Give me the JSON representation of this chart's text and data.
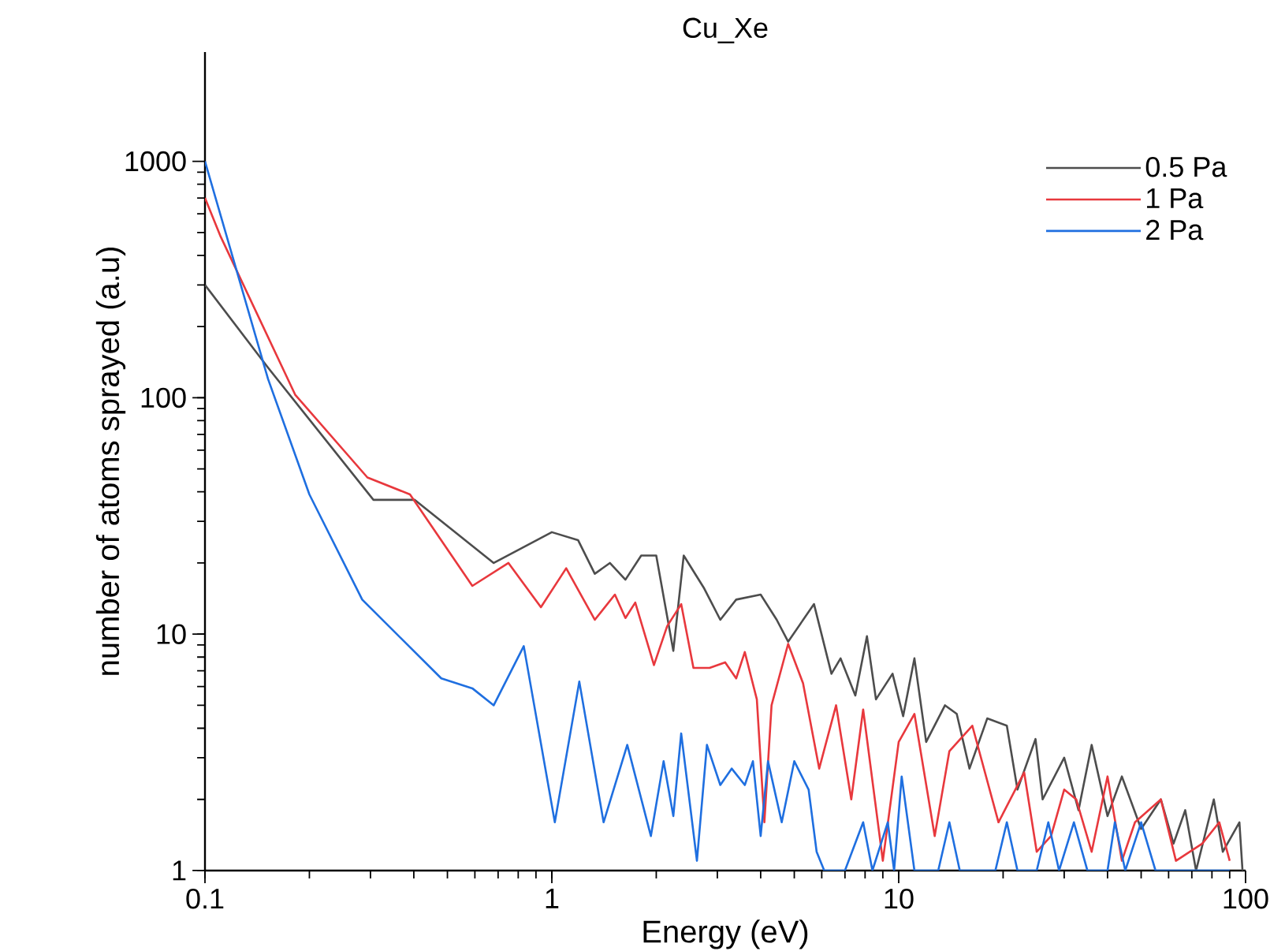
{
  "chart_data": {
    "type": "line",
    "title": "Cu_Xe",
    "xlabel": "Energy  (eV)",
    "ylabel": "number of atoms sprayed (a.u)",
    "log": "xy",
    "xlim": [
      0.1,
      100
    ],
    "ylim": [
      1,
      2900
    ],
    "xticks": [
      {
        "value": 0.1,
        "label": "0.1"
      },
      1,
      10,
      100
    ],
    "yticks": [
      1,
      10,
      100,
      1000
    ],
    "grid": false,
    "legend": "top right",
    "series": [
      {
        "name": "0.5 Pa",
        "color": "#4d4d4d",
        "x": [
          0.1,
          0.152,
          0.306,
          0.402,
          0.68,
          1.0,
          1.19,
          1.33,
          1.47,
          1.63,
          1.81,
          2.0,
          2.24,
          2.4,
          2.75,
          3.06,
          3.4,
          4.0,
          4.45,
          4.8,
          5.7,
          6.4,
          6.8,
          7.5,
          8.1,
          8.6,
          9.6,
          10.3,
          11.1,
          12,
          13.6,
          14.7,
          16,
          18,
          20.5,
          22,
          24.8,
          26,
          30,
          33,
          36,
          40,
          44,
          50,
          57,
          62,
          67,
          72,
          81,
          86,
          96,
          98
        ],
        "values": [
          300,
          134,
          37,
          37,
          20,
          27,
          25,
          18,
          20,
          17,
          21.5,
          21.5,
          8.5,
          21.5,
          15.6,
          11.5,
          14,
          14.7,
          11.5,
          9.3,
          13.4,
          6.8,
          7.9,
          5.5,
          9.8,
          5.3,
          6.8,
          4.5,
          7.9,
          3.5,
          5.0,
          4.6,
          2.7,
          4.4,
          4.1,
          2.2,
          3.6,
          2.0,
          3.0,
          1.8,
          3.4,
          1.7,
          2.5,
          1.5,
          2.0,
          1.3,
          1.8,
          1.0,
          2.0,
          1.2,
          1.6,
          1.0
        ]
      },
      {
        "name": "1 Pa",
        "color": "#e8383d",
        "x": [
          0.1,
          0.111,
          0.182,
          0.294,
          0.39,
          0.59,
          0.75,
          0.93,
          1.1,
          1.33,
          1.52,
          1.63,
          1.74,
          1.97,
          2.15,
          2.36,
          2.56,
          2.85,
          3.16,
          3.4,
          3.6,
          3.9,
          4.1,
          4.3,
          4.8,
          5.3,
          5.9,
          6.6,
          7.3,
          7.9,
          9.0,
          10,
          11.1,
          12.7,
          14,
          16.3,
          19.4,
          23,
          25,
          27.5,
          30,
          32.5,
          36,
          40,
          44,
          48,
          57,
          63,
          75,
          84,
          90
        ],
        "values": [
          700,
          480,
          103,
          46,
          39,
          16,
          20,
          13,
          19,
          11.5,
          14.7,
          11.7,
          13.6,
          7.4,
          10.8,
          13.4,
          7.2,
          7.2,
          7.6,
          6.5,
          8.4,
          5.3,
          1.6,
          5.0,
          9.1,
          6.2,
          2.7,
          5.0,
          2.0,
          4.8,
          1.1,
          3.5,
          4.6,
          1.4,
          3.2,
          4.1,
          1.6,
          2.6,
          1.2,
          1.4,
          2.2,
          2.0,
          1.2,
          2.5,
          1.1,
          1.6,
          2.0,
          1.1,
          1.3,
          1.6,
          1.1
        ]
      },
      {
        "name": "2 Pa",
        "color": "#1f6fe0",
        "x": [
          0.1,
          0.152,
          0.2,
          0.284,
          0.48,
          0.59,
          0.68,
          0.83,
          1.02,
          1.2,
          1.41,
          1.65,
          1.93,
          2.1,
          2.24,
          2.36,
          2.62,
          2.8,
          3.06,
          3.3,
          3.6,
          3.8,
          4.0,
          4.2,
          4.6,
          5.0,
          5.5,
          5.8,
          6.1,
          7.0,
          7.9,
          8.4,
          9.3,
          9.7,
          10.2,
          11.1,
          13,
          14,
          15,
          19,
          20.5,
          22,
          25,
          27,
          29,
          32,
          35,
          40,
          42,
          45,
          50,
          55,
          90
        ],
        "values": [
          1000,
          120,
          39,
          14,
          6.5,
          5.9,
          5.0,
          8.9,
          1.6,
          6.3,
          1.6,
          3.4,
          1.4,
          2.9,
          1.7,
          3.8,
          1.1,
          3.4,
          2.3,
          2.7,
          2.3,
          2.9,
          1.4,
          2.9,
          1.6,
          2.9,
          2.2,
          1.2,
          1.0,
          1.0,
          1.6,
          1.0,
          1.6,
          1.0,
          2.5,
          1.0,
          1.0,
          1.6,
          1.0,
          1.0,
          1.6,
          1.0,
          1.0,
          1.6,
          1.0,
          1.6,
          1.0,
          1.0,
          1.6,
          1.0,
          1.6,
          1.0,
          1.0
        ]
      }
    ]
  }
}
